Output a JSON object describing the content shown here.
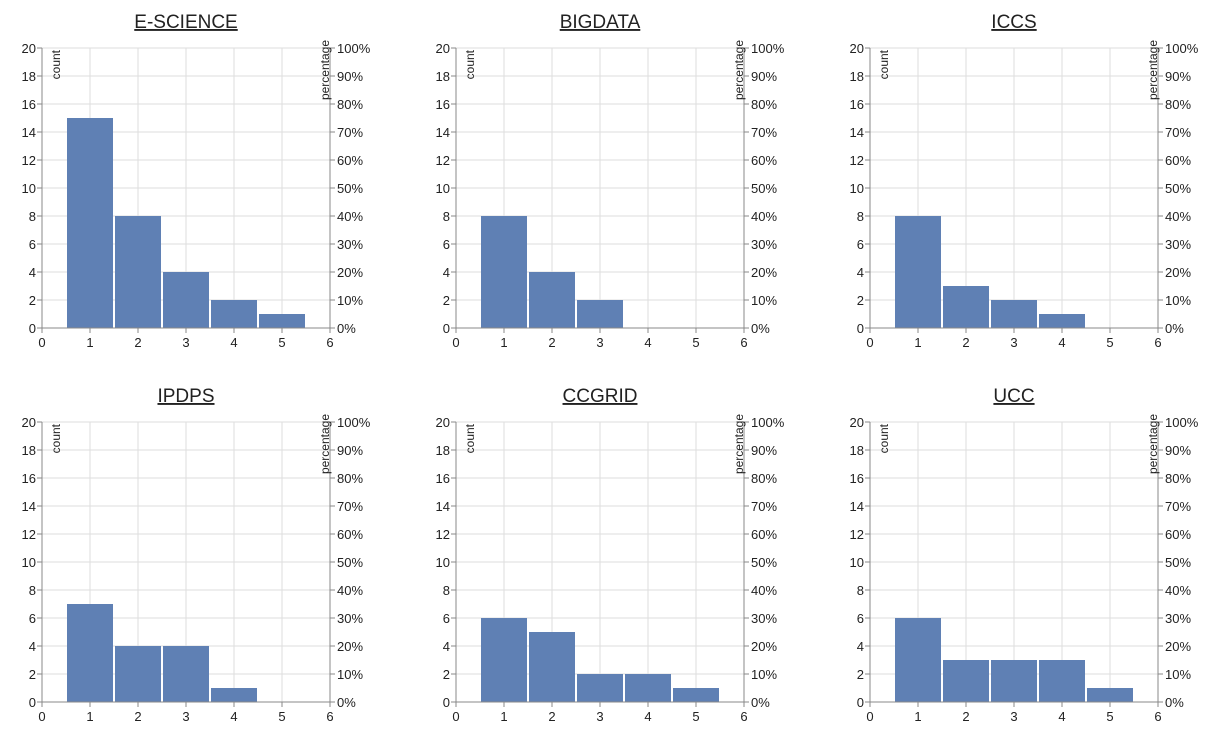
{
  "chart_data": [
    {
      "type": "bar",
      "title": "E-SCIENCE",
      "x": [
        1,
        2,
        3,
        4,
        5
      ],
      "values": [
        15,
        8,
        4,
        2,
        1
      ],
      "xlabel": "",
      "ylabel": "count",
      "y2label": "percentage",
      "xlim": [
        0,
        6
      ],
      "ylim": [
        0,
        20
      ],
      "y2lim": [
        0,
        100
      ],
      "xticks": [
        "0",
        "1",
        "2",
        "3",
        "4",
        "5",
        "6"
      ],
      "yticks": [
        "0",
        "2",
        "4",
        "6",
        "8",
        "10",
        "12",
        "14",
        "16",
        "18",
        "20"
      ],
      "y2ticks": [
        "0%",
        "10%",
        "20%",
        "30%",
        "40%",
        "50%",
        "60%",
        "70%",
        "80%",
        "90%",
        "100%"
      ],
      "grid": true
    },
    {
      "type": "bar",
      "title": "BIGDATA",
      "x": [
        1,
        2,
        3
      ],
      "values": [
        8,
        4,
        2
      ],
      "xlabel": "",
      "ylabel": "count",
      "y2label": "percentage",
      "xlim": [
        0,
        6
      ],
      "ylim": [
        0,
        20
      ],
      "y2lim": [
        0,
        100
      ],
      "xticks": [
        "0",
        "1",
        "2",
        "3",
        "4",
        "5",
        "6"
      ],
      "yticks": [
        "0",
        "2",
        "4",
        "6",
        "8",
        "10",
        "12",
        "14",
        "16",
        "18",
        "20"
      ],
      "y2ticks": [
        "0%",
        "10%",
        "20%",
        "30%",
        "40%",
        "50%",
        "60%",
        "70%",
        "80%",
        "90%",
        "100%"
      ],
      "grid": true
    },
    {
      "type": "bar",
      "title": "ICCS",
      "x": [
        1,
        2,
        3,
        4
      ],
      "values": [
        8,
        3,
        2,
        1
      ],
      "xlabel": "",
      "ylabel": "count",
      "y2label": "percentage",
      "xlim": [
        0,
        6
      ],
      "ylim": [
        0,
        20
      ],
      "y2lim": [
        0,
        100
      ],
      "xticks": [
        "0",
        "1",
        "2",
        "3",
        "4",
        "5",
        "6"
      ],
      "yticks": [
        "0",
        "2",
        "4",
        "6",
        "8",
        "10",
        "12",
        "14",
        "16",
        "18",
        "20"
      ],
      "y2ticks": [
        "0%",
        "10%",
        "20%",
        "30%",
        "40%",
        "50%",
        "60%",
        "70%",
        "80%",
        "90%",
        "100%"
      ],
      "grid": true
    },
    {
      "type": "bar",
      "title": "IPDPS",
      "x": [
        1,
        2,
        3,
        4
      ],
      "values": [
        7,
        4,
        4,
        1
      ],
      "xlabel": "",
      "ylabel": "count",
      "y2label": "percentage",
      "xlim": [
        0,
        6
      ],
      "ylim": [
        0,
        20
      ],
      "y2lim": [
        0,
        100
      ],
      "xticks": [
        "0",
        "1",
        "2",
        "3",
        "4",
        "5",
        "6"
      ],
      "yticks": [
        "0",
        "2",
        "4",
        "6",
        "8",
        "10",
        "12",
        "14",
        "16",
        "18",
        "20"
      ],
      "y2ticks": [
        "0%",
        "10%",
        "20%",
        "30%",
        "40%",
        "50%",
        "60%",
        "70%",
        "80%",
        "90%",
        "100%"
      ],
      "grid": true
    },
    {
      "type": "bar",
      "title": "CCGRID",
      "x": [
        1,
        2,
        3,
        4,
        5
      ],
      "values": [
        6,
        5,
        2,
        2,
        1
      ],
      "xlabel": "",
      "ylabel": "count",
      "y2label": "percentage",
      "xlim": [
        0,
        6
      ],
      "ylim": [
        0,
        20
      ],
      "y2lim": [
        0,
        100
      ],
      "xticks": [
        "0",
        "1",
        "2",
        "3",
        "4",
        "5",
        "6"
      ],
      "yticks": [
        "0",
        "2",
        "4",
        "6",
        "8",
        "10",
        "12",
        "14",
        "16",
        "18",
        "20"
      ],
      "y2ticks": [
        "0%",
        "10%",
        "20%",
        "30%",
        "40%",
        "50%",
        "60%",
        "70%",
        "80%",
        "90%",
        "100%"
      ],
      "grid": true
    },
    {
      "type": "bar",
      "title": "UCC",
      "x": [
        1,
        2,
        3,
        4,
        5
      ],
      "values": [
        6,
        3,
        3,
        3,
        1
      ],
      "xlabel": "",
      "ylabel": "count",
      "y2label": "percentage",
      "xlim": [
        0,
        6
      ],
      "ylim": [
        0,
        20
      ],
      "y2lim": [
        0,
        100
      ],
      "xticks": [
        "0",
        "1",
        "2",
        "3",
        "4",
        "5",
        "6"
      ],
      "yticks": [
        "0",
        "2",
        "4",
        "6",
        "8",
        "10",
        "12",
        "14",
        "16",
        "18",
        "20"
      ],
      "y2ticks": [
        "0%",
        "10%",
        "20%",
        "30%",
        "40%",
        "50%",
        "60%",
        "70%",
        "80%",
        "90%",
        "100%"
      ],
      "grid": true
    }
  ],
  "colors": {
    "bar": "#5f80b4",
    "grid": "#dddddd",
    "axis": "#888888",
    "text": "#222222"
  }
}
